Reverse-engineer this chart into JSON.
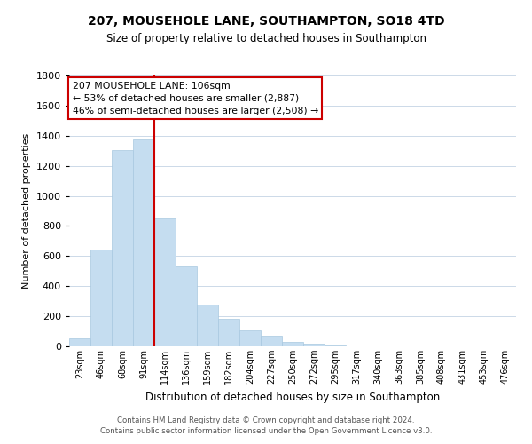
{
  "title": "207, MOUSEHOLE LANE, SOUTHAMPTON, SO18 4TD",
  "subtitle": "Size of property relative to detached houses in Southampton",
  "xlabel": "Distribution of detached houses by size in Southampton",
  "ylabel": "Number of detached properties",
  "bar_color": "#c5ddf0",
  "bar_edge_color": "#a8c8e0",
  "categories": [
    "23sqm",
    "46sqm",
    "68sqm",
    "91sqm",
    "114sqm",
    "136sqm",
    "159sqm",
    "182sqm",
    "204sqm",
    "227sqm",
    "250sqm",
    "272sqm",
    "295sqm",
    "317sqm",
    "340sqm",
    "363sqm",
    "385sqm",
    "408sqm",
    "431sqm",
    "453sqm",
    "476sqm"
  ],
  "values": [
    55,
    645,
    1305,
    1375,
    850,
    530,
    280,
    185,
    105,
    68,
    30,
    20,
    8,
    2,
    1,
    1,
    0,
    0,
    0,
    0,
    0
  ],
  "ylim": [
    0,
    1800
  ],
  "yticks": [
    0,
    200,
    400,
    600,
    800,
    1000,
    1200,
    1400,
    1600,
    1800
  ],
  "property_line_x": 4,
  "property_line_color": "#cc0000",
  "annotation_line1": "207 MOUSEHOLE LANE: 106sqm",
  "annotation_line2": "← 53% of detached houses are smaller (2,887)",
  "annotation_line3": "46% of semi-detached houses are larger (2,508) →",
  "annotation_box_color": "#ffffff",
  "annotation_box_edge_color": "#cc0000",
  "footer_line1": "Contains HM Land Registry data © Crown copyright and database right 2024.",
  "footer_line2": "Contains public sector information licensed under the Open Government Licence v3.0.",
  "background_color": "#ffffff",
  "grid_color": "#ccd9e8"
}
